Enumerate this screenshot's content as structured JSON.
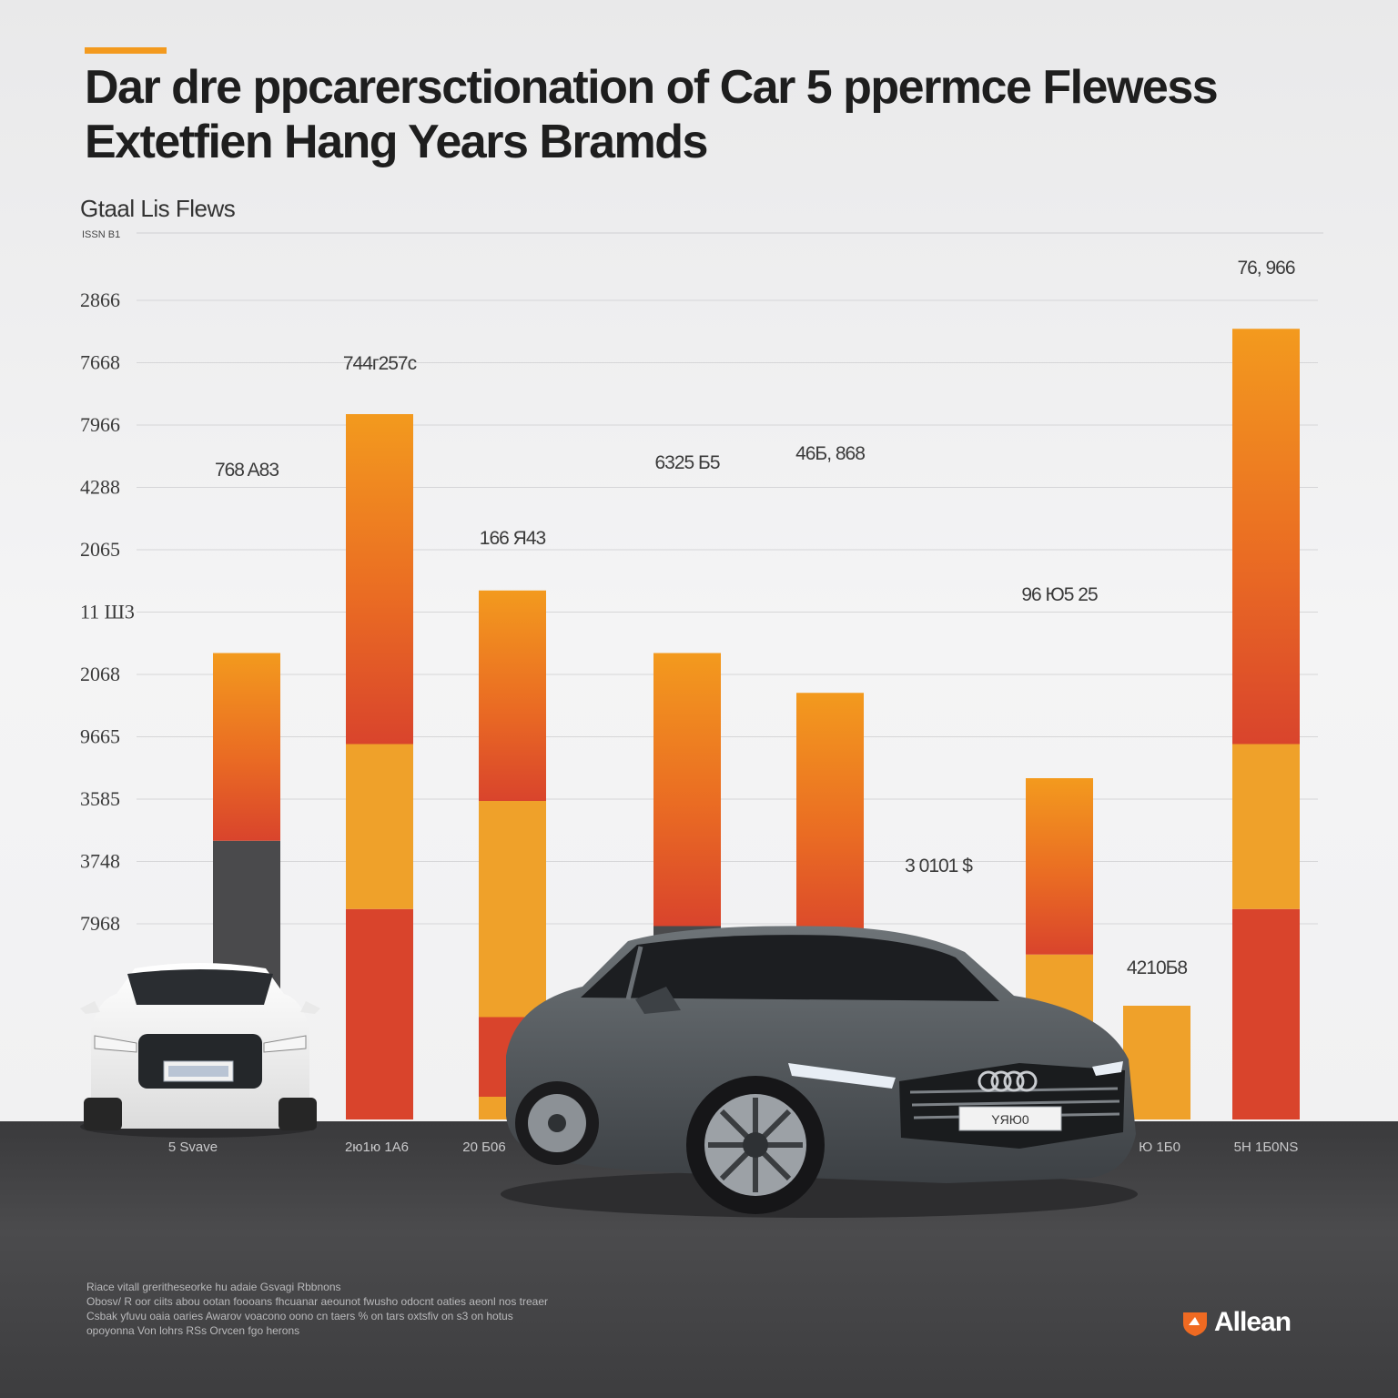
{
  "title": "Dar dre ppcarersctionation of Car 5 ppermce Flewess Extetfien Hang Years Bramds",
  "subtitle": "Gtaal Lis Flews",
  "unit": "ISSN B1",
  "footnote": [
    "Riace vitall greritheseorke hu adaie Gsvagi Rbbnons",
    "Obosv/ R oor ciits abou ootan foooans fhcuanar aeounot fwusho odocnt oaties aeonl nos treaer",
    "Csbak yfuvu oaia oaries Awarov voacono oono cn taers % on tars oxtsfiv on s3 on hotus",
    "opoyonna Von lohrs RSs Orvcen fgo herons"
  ],
  "logo": {
    "word": "Allean",
    "mark": "allean-logo-mark"
  },
  "colors": {
    "orange": "#f39a1e",
    "orange_mid": "#ea6c23",
    "red": "#d9442c",
    "yellow": "#efa12a",
    "dark": "#4a4a4c"
  },
  "chart_data": {
    "type": "bar",
    "stacked": true,
    "y_tick_labels": [
      "2866",
      "7668",
      "7966",
      "4288",
      "2065",
      "11 Ш3",
      "2068",
      "9665",
      "3585",
      "3748",
      "7968"
    ],
    "bar_value_labels": [
      "768 A83",
      "744г257с",
      "166 Я43",
      "6325 Б5",
      "46Б, 868",
      "3 0101 $",
      "96 Ю5 25",
      "4210Б8",
      "76, 966"
    ],
    "x_labels": [
      "5 Svave",
      "2ю1ю 1А6",
      "20 Б06",
      "",
      "",
      "",
      "",
      "Ю 1Б0",
      "5Н 1Б0NS"
    ],
    "grid": true,
    "bars": [
      {
        "segments": [
          {
            "color": "dark",
            "value": 2.45
          },
          {
            "color": "gradient",
            "value": 1.65
          }
        ]
      },
      {
        "segments": [
          {
            "color": "red",
            "value": 1.85
          },
          {
            "color": "yellow",
            "value": 1.45
          },
          {
            "color": "gradient",
            "value": 2.9
          }
        ]
      },
      {
        "segments": [
          {
            "color": "yellow",
            "value": 0.2
          },
          {
            "color": "red",
            "value": 0.7
          },
          {
            "color": "yellow",
            "value": 1.9
          },
          {
            "color": "gradient",
            "value": 1.85
          }
        ]
      },
      {
        "segments": [
          {
            "color": "dark",
            "value": 1.7
          },
          {
            "color": "gradient",
            "value": 2.4
          }
        ]
      },
      {
        "segments": [
          {
            "color": "dark",
            "value": 0.55
          },
          {
            "color": "yellow",
            "value": 0.95
          },
          {
            "color": "gradient",
            "value": 2.25
          }
        ]
      },
      {
        "segments": [
          {
            "color": "yellow",
            "value": 0.7
          }
        ]
      },
      {
        "segments": [
          {
            "color": "red",
            "value": 0.55
          },
          {
            "color": "yellow",
            "value": 0.9
          },
          {
            "color": "gradient",
            "value": 1.55
          }
        ]
      },
      {
        "segments": [
          {
            "color": "yellow",
            "value": 1.0
          }
        ]
      },
      {
        "segments": [
          {
            "color": "red",
            "value": 1.85
          },
          {
            "color": "yellow",
            "value": 1.45
          },
          {
            "color": "gradient",
            "value": 3.65
          }
        ]
      }
    ]
  }
}
